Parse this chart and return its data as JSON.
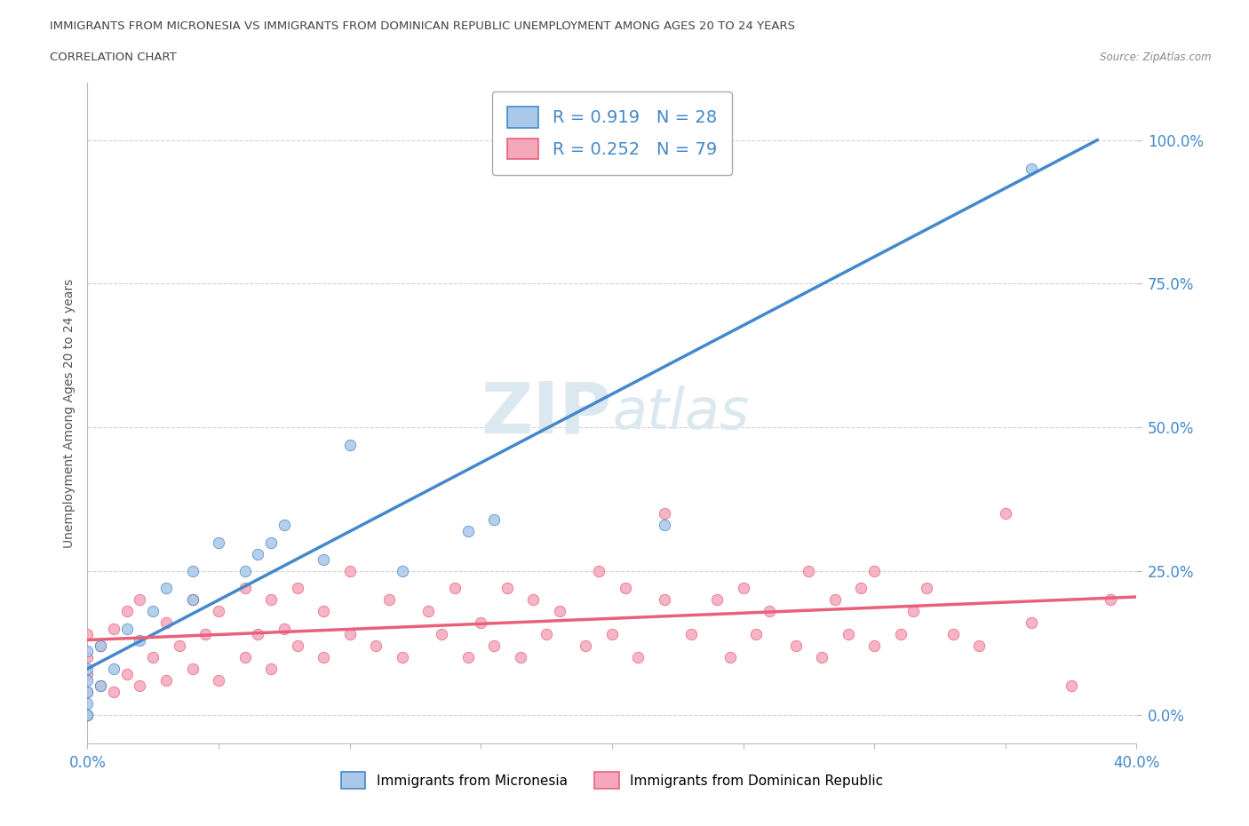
{
  "title_line1": "IMMIGRANTS FROM MICRONESIA VS IMMIGRANTS FROM DOMINICAN REPUBLIC UNEMPLOYMENT AMONG AGES 20 TO 24 YEARS",
  "title_line2": "CORRELATION CHART",
  "source_text": "Source: ZipAtlas.com",
  "ylabel": "Unemployment Among Ages 20 to 24 years",
  "xlim": [
    0.0,
    0.4
  ],
  "ylim": [
    -0.05,
    1.1
  ],
  "yticks": [
    0.0,
    0.25,
    0.5,
    0.75,
    1.0
  ],
  "ytick_labels": [
    "0.0%",
    "25.0%",
    "50.0%",
    "75.0%",
    "100.0%"
  ],
  "micronesia_color": "#aac8e8",
  "dominican_color": "#f5a8bc",
  "micronesia_R": 0.919,
  "micronesia_N": 28,
  "dominican_R": 0.252,
  "dominican_N": 79,
  "micronesia_line_color": "#4488cc",
  "dominican_line_color": "#e8607a",
  "watermark_color": "#dce8f0",
  "background_color": "#ffffff",
  "mic_line_x0": 0.0,
  "mic_line_y0": 0.08,
  "mic_line_x1": 0.385,
  "mic_line_y1": 1.0,
  "dom_line_x0": 0.0,
  "dom_line_y0": 0.13,
  "dom_line_x1": 0.4,
  "dom_line_y1": 0.205,
  "micronesia_scatter_x": [
    0.0,
    0.0,
    0.0,
    0.0,
    0.0,
    0.0,
    0.0,
    0.005,
    0.005,
    0.01,
    0.015,
    0.02,
    0.025,
    0.03,
    0.04,
    0.04,
    0.05,
    0.06,
    0.065,
    0.07,
    0.075,
    0.09,
    0.1,
    0.12,
    0.145,
    0.155,
    0.22,
    0.36
  ],
  "micronesia_scatter_y": [
    0.0,
    0.0,
    0.02,
    0.04,
    0.06,
    0.08,
    0.11,
    0.05,
    0.12,
    0.08,
    0.15,
    0.13,
    0.18,
    0.22,
    0.2,
    0.25,
    0.3,
    0.25,
    0.28,
    0.3,
    0.33,
    0.27,
    0.47,
    0.25,
    0.32,
    0.34,
    0.33,
    0.95
  ],
  "dominican_scatter_x": [
    0.0,
    0.0,
    0.0,
    0.0,
    0.0,
    0.0,
    0.005,
    0.005,
    0.01,
    0.01,
    0.015,
    0.015,
    0.02,
    0.02,
    0.025,
    0.03,
    0.03,
    0.035,
    0.04,
    0.04,
    0.045,
    0.05,
    0.05,
    0.06,
    0.06,
    0.065,
    0.07,
    0.07,
    0.075,
    0.08,
    0.08,
    0.09,
    0.09,
    0.1,
    0.1,
    0.11,
    0.115,
    0.12,
    0.13,
    0.135,
    0.14,
    0.145,
    0.15,
    0.155,
    0.16,
    0.165,
    0.17,
    0.175,
    0.18,
    0.19,
    0.195,
    0.2,
    0.205,
    0.21,
    0.22,
    0.22,
    0.23,
    0.24,
    0.245,
    0.25,
    0.255,
    0.26,
    0.27,
    0.275,
    0.28,
    0.285,
    0.29,
    0.295,
    0.3,
    0.3,
    0.31,
    0.315,
    0.32,
    0.33,
    0.34,
    0.35,
    0.36,
    0.375,
    0.39
  ],
  "dominican_scatter_y": [
    0.0,
    0.0,
    0.04,
    0.07,
    0.1,
    0.14,
    0.05,
    0.12,
    0.04,
    0.15,
    0.07,
    0.18,
    0.05,
    0.2,
    0.1,
    0.06,
    0.16,
    0.12,
    0.08,
    0.2,
    0.14,
    0.06,
    0.18,
    0.1,
    0.22,
    0.14,
    0.08,
    0.2,
    0.15,
    0.12,
    0.22,
    0.1,
    0.18,
    0.14,
    0.25,
    0.12,
    0.2,
    0.1,
    0.18,
    0.14,
    0.22,
    0.1,
    0.16,
    0.12,
    0.22,
    0.1,
    0.2,
    0.14,
    0.18,
    0.12,
    0.25,
    0.14,
    0.22,
    0.1,
    0.2,
    0.35,
    0.14,
    0.2,
    0.1,
    0.22,
    0.14,
    0.18,
    0.12,
    0.25,
    0.1,
    0.2,
    0.14,
    0.22,
    0.12,
    0.25,
    0.14,
    0.18,
    0.22,
    0.14,
    0.12,
    0.35,
    0.16,
    0.05,
    0.2
  ]
}
